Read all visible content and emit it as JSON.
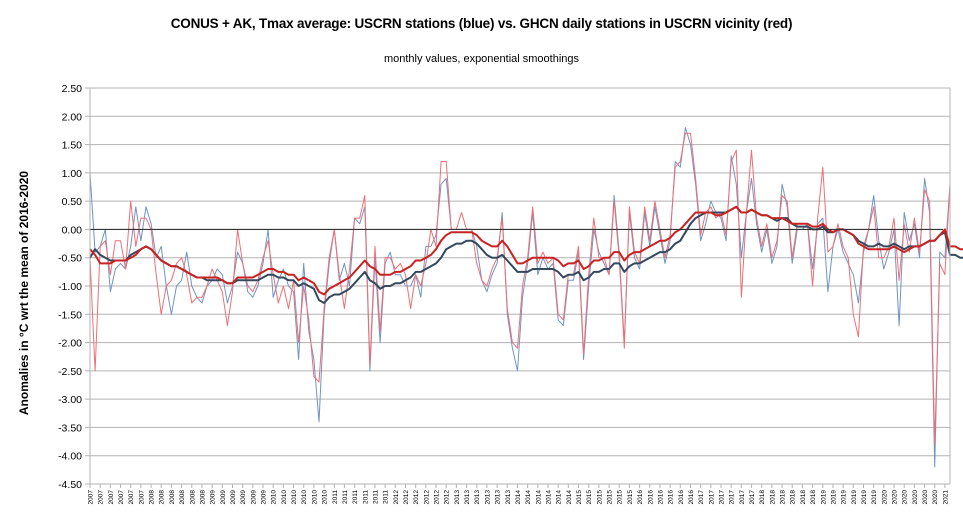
{
  "chart_data": {
    "type": "line",
    "title": "CONUS + AK, Tmax average: USCRN stations (blue) vs. GHCN daily stations in USCRN vicinity (red)",
    "subtitle": "monthly values, exponential smoothings",
    "xlabel": "",
    "ylabel": "Anomalies in °C wrt the mean of 2016-2020",
    "ylim": [
      -4.5,
      2.5
    ],
    "yticks": [
      "2.50",
      "2.00",
      "1.50",
      "1.00",
      "0.50",
      "0.00",
      "-0.50",
      "-1.00",
      "-1.50",
      "-2.00",
      "-2.50",
      "-3.00",
      "-3.50",
      "-4.00",
      "-4.50"
    ],
    "x_range": [
      "2007",
      "2021"
    ],
    "x_tick_labels_by_year": [
      "2007",
      "2008",
      "2009",
      "2010",
      "2011",
      "2012",
      "2013",
      "2014",
      "2015",
      "2016",
      "2017",
      "2018",
      "2019",
      "2020",
      "2021"
    ],
    "x_tick_every_months": 2,
    "grid": true,
    "legend": "none (series identified in title: blue = USCRN, red = GHCN)",
    "colors": {
      "uscrn_monthly": "#6f94c4",
      "ghcn_monthly": "#f06e74",
      "uscrn_smooth": "#34495e",
      "ghcn_smooth": "#c82323",
      "zero_line": "#333333",
      "grid": "#b3b3b3"
    },
    "series": [
      {
        "name": "USCRN monthly",
        "color": "blue",
        "values": [
          1.0,
          -0.4,
          -0.3,
          0.0,
          -1.1,
          -0.7,
          -0.6,
          -0.7,
          -0.3,
          0.4,
          -0.2,
          0.4,
          0.1,
          -0.5,
          -0.3,
          -1.0,
          -1.5,
          -1.0,
          -0.9,
          -0.4,
          -1.0,
          -1.2,
          -1.3,
          -1.0,
          -0.9,
          -0.7,
          -0.8,
          -1.3,
          -1.0,
          -0.4,
          -0.6,
          -1.1,
          -1.2,
          -1.0,
          -0.6,
          0.0,
          -1.2,
          -0.9,
          -0.7,
          -1.0,
          -1.1,
          -2.3,
          -0.6,
          -1.8,
          -2.3,
          -3.4,
          -1.5,
          -0.6,
          0.0,
          -0.9,
          -0.6,
          -1.0,
          0.2,
          0.1,
          0.4,
          -2.5,
          -0.5,
          -2.0,
          -0.6,
          -0.4,
          -0.8,
          -0.8,
          -1.0,
          -1.0,
          -0.8,
          -1.2,
          -0.3,
          -0.3,
          -0.1,
          0.8,
          0.9,
          0.0,
          0.0,
          0.0,
          0.0,
          0.0,
          -0.3,
          -0.9,
          -1.1,
          -0.8,
          -0.6,
          0.3,
          -1.5,
          -2.1,
          -2.5,
          -1.2,
          -0.6,
          0.3,
          -0.8,
          -0.5,
          -0.7,
          -0.6,
          -1.6,
          -1.7,
          -0.9,
          -0.9,
          -0.4,
          -2.3,
          -1.0,
          0.0,
          -0.4,
          -0.6,
          -0.8,
          0.6,
          -0.4,
          -2.0,
          0.3,
          -0.5,
          -0.7,
          0.3,
          -0.3,
          0.4,
          -0.1,
          -0.6,
          -0.2,
          1.2,
          1.1,
          1.8,
          1.5,
          0.8,
          -0.2,
          0.1,
          0.5,
          0.3,
          0.2,
          -0.2,
          1.3,
          0.8,
          -0.5,
          0.3,
          0.9,
          0.1,
          -0.4,
          0.0,
          -0.6,
          -0.3,
          0.8,
          0.4,
          -0.6,
          0.0,
          0.0,
          0.1,
          -0.7,
          0.1,
          0.2,
          -1.1,
          -0.3,
          0.0,
          -0.4,
          -0.6,
          -0.8,
          -1.3,
          -0.4,
          0.0,
          0.6,
          -0.2,
          -0.7,
          -0.4,
          0.0,
          -1.7,
          0.3,
          -0.2,
          0.1,
          -0.5,
          0.9,
          0.3,
          -4.2,
          -0.4,
          -0.5,
          0.8
        ]
      },
      {
        "name": "GHCN monthly",
        "color": "red",
        "values": [
          -0.5,
          -2.5,
          -0.3,
          -0.2,
          -0.8,
          -0.2,
          -0.2,
          -0.7,
          0.5,
          -0.3,
          0.2,
          0.2,
          0.0,
          -0.8,
          -1.5,
          -1.0,
          -0.9,
          -0.6,
          -0.5,
          -0.8,
          -1.3,
          -1.2,
          -1.2,
          -1.0,
          -0.7,
          -0.9,
          -1.1,
          -1.7,
          -1.1,
          0.0,
          -0.6,
          -1.0,
          -1.1,
          -0.9,
          -0.5,
          -0.2,
          -0.8,
          -1.3,
          -1.0,
          -1.4,
          -0.9,
          -2.0,
          -1.0,
          -1.6,
          -2.6,
          -2.7,
          -1.4,
          -0.5,
          0.0,
          -0.8,
          -1.4,
          -0.7,
          0.2,
          0.2,
          0.6,
          -2.4,
          -0.3,
          -1.8,
          -0.5,
          -0.5,
          -0.7,
          -0.6,
          -0.8,
          -1.4,
          -0.8,
          -1.0,
          -0.6,
          0.0,
          -0.3,
          1.2,
          1.2,
          0.0,
          0.0,
          0.3,
          0.0,
          0.0,
          -0.6,
          -0.9,
          -1.0,
          -0.7,
          -0.5,
          0.2,
          -1.4,
          -2.0,
          -2.1,
          -1.0,
          -0.5,
          0.4,
          -0.6,
          -0.4,
          -0.6,
          -0.5,
          -1.5,
          -1.6,
          -0.8,
          -0.8,
          -0.3,
          -2.2,
          -0.8,
          0.2,
          -0.5,
          -0.5,
          -0.8,
          0.5,
          -0.5,
          -2.1,
          0.4,
          -0.4,
          -0.6,
          0.4,
          -0.2,
          0.5,
          0.0,
          -0.5,
          -0.1,
          1.1,
          1.2,
          1.7,
          1.7,
          0.9,
          -0.1,
          0.3,
          0.4,
          0.2,
          0.3,
          -0.1,
          1.2,
          1.4,
          -1.2,
          0.3,
          1.4,
          0.2,
          -0.3,
          0.1,
          -0.5,
          -0.2,
          0.6,
          0.5,
          -0.5,
          0.1,
          0.1,
          0.1,
          -1.0,
          0.2,
          1.1,
          -0.4,
          -0.3,
          0.1,
          -0.3,
          -0.5,
          -1.5,
          -1.9,
          -0.3,
          0.0,
          0.4,
          -0.5,
          -0.5,
          -0.3,
          0.2,
          -0.9,
          0.1,
          -0.4,
          0.2,
          -0.4,
          0.7,
          0.5,
          -3.8,
          -0.6,
          -0.8,
          0.8
        ]
      },
      {
        "name": "USCRN exponential smoothing",
        "color": "dark blue",
        "values": [
          -0.5,
          -0.35,
          -0.45,
          -0.5,
          -0.55,
          -0.55,
          -0.55,
          -0.55,
          -0.45,
          -0.4,
          -0.35,
          -0.3,
          -0.35,
          -0.45,
          -0.55,
          -0.6,
          -0.65,
          -0.65,
          -0.7,
          -0.75,
          -0.8,
          -0.85,
          -0.85,
          -0.9,
          -0.9,
          -0.9,
          -0.9,
          -0.95,
          -0.95,
          -0.9,
          -0.9,
          -0.9,
          -0.9,
          -0.9,
          -0.85,
          -0.8,
          -0.8,
          -0.85,
          -0.85,
          -0.9,
          -0.9,
          -1.0,
          -0.95,
          -1.0,
          -1.05,
          -1.25,
          -1.3,
          -1.2,
          -1.15,
          -1.15,
          -1.1,
          -1.05,
          -0.95,
          -0.85,
          -0.75,
          -0.9,
          -0.95,
          -1.05,
          -1.0,
          -1.0,
          -0.95,
          -0.95,
          -0.9,
          -0.85,
          -0.75,
          -0.75,
          -0.7,
          -0.65,
          -0.6,
          -0.5,
          -0.35,
          -0.3,
          -0.25,
          -0.25,
          -0.2,
          -0.2,
          -0.25,
          -0.35,
          -0.45,
          -0.5,
          -0.5,
          -0.45,
          -0.55,
          -0.65,
          -0.75,
          -0.75,
          -0.75,
          -0.7,
          -0.7,
          -0.7,
          -0.7,
          -0.7,
          -0.75,
          -0.85,
          -0.8,
          -0.8,
          -0.75,
          -0.9,
          -0.85,
          -0.75,
          -0.75,
          -0.7,
          -0.7,
          -0.6,
          -0.6,
          -0.75,
          -0.65,
          -0.6,
          -0.6,
          -0.55,
          -0.5,
          -0.45,
          -0.4,
          -0.4,
          -0.35,
          -0.25,
          -0.2,
          -0.05,
          0.1,
          0.2,
          0.25,
          0.3,
          0.3,
          0.3,
          0.3,
          0.3,
          0.35,
          0.4,
          0.3,
          0.3,
          0.35,
          0.3,
          0.25,
          0.25,
          0.2,
          0.15,
          0.2,
          0.2,
          0.1,
          0.05,
          0.05,
          0.05,
          0.0,
          0.0,
          0.05,
          -0.05,
          -0.05,
          0.0,
          0.0,
          -0.05,
          -0.1,
          -0.2,
          -0.25,
          -0.3,
          -0.3,
          -0.25,
          -0.3,
          -0.3,
          -0.25,
          -0.3,
          -0.35,
          -0.3,
          -0.3,
          -0.3,
          -0.25,
          -0.2,
          -0.2,
          -0.1,
          -0.05,
          -0.45,
          -0.45,
          -0.5,
          -0.5
        ]
      },
      {
        "name": "GHCN exponential smoothing",
        "color": "dark red",
        "values": [
          -0.35,
          -0.45,
          -0.6,
          -0.6,
          -0.6,
          -0.55,
          -0.55,
          -0.55,
          -0.5,
          -0.45,
          -0.35,
          -0.3,
          -0.35,
          -0.45,
          -0.55,
          -0.6,
          -0.65,
          -0.65,
          -0.7,
          -0.75,
          -0.8,
          -0.85,
          -0.85,
          -0.85,
          -0.85,
          -0.85,
          -0.9,
          -0.95,
          -0.95,
          -0.85,
          -0.85,
          -0.85,
          -0.85,
          -0.8,
          -0.75,
          -0.7,
          -0.7,
          -0.75,
          -0.75,
          -0.8,
          -0.8,
          -0.9,
          -0.85,
          -0.9,
          -0.95,
          -1.1,
          -1.15,
          -1.05,
          -1.0,
          -0.95,
          -0.9,
          -0.85,
          -0.75,
          -0.65,
          -0.55,
          -0.65,
          -0.7,
          -0.8,
          -0.8,
          -0.8,
          -0.75,
          -0.75,
          -0.7,
          -0.65,
          -0.55,
          -0.55,
          -0.5,
          -0.45,
          -0.35,
          -0.2,
          -0.1,
          -0.05,
          -0.05,
          -0.05,
          -0.05,
          -0.05,
          -0.1,
          -0.2,
          -0.25,
          -0.3,
          -0.3,
          -0.2,
          -0.3,
          -0.45,
          -0.6,
          -0.6,
          -0.55,
          -0.5,
          -0.5,
          -0.5,
          -0.5,
          -0.5,
          -0.55,
          -0.65,
          -0.6,
          -0.6,
          -0.55,
          -0.7,
          -0.65,
          -0.55,
          -0.55,
          -0.5,
          -0.5,
          -0.4,
          -0.4,
          -0.55,
          -0.45,
          -0.4,
          -0.4,
          -0.35,
          -0.3,
          -0.25,
          -0.2,
          -0.2,
          -0.15,
          -0.05,
          0.0,
          0.1,
          0.2,
          0.3,
          0.3,
          0.3,
          0.3,
          0.25,
          0.25,
          0.3,
          0.35,
          0.4,
          0.3,
          0.3,
          0.35,
          0.3,
          0.25,
          0.25,
          0.2,
          0.2,
          0.2,
          0.15,
          0.1,
          0.1,
          0.1,
          0.1,
          0.05,
          0.05,
          0.1,
          0.0,
          -0.05,
          0.0,
          0.0,
          -0.05,
          -0.1,
          -0.25,
          -0.3,
          -0.35,
          -0.35,
          -0.35,
          -0.35,
          -0.35,
          -0.3,
          -0.35,
          -0.4,
          -0.35,
          -0.3,
          -0.3,
          -0.25,
          -0.2,
          -0.2,
          -0.1,
          0.0,
          -0.3,
          -0.3,
          -0.35,
          -0.35
        ]
      }
    ]
  }
}
